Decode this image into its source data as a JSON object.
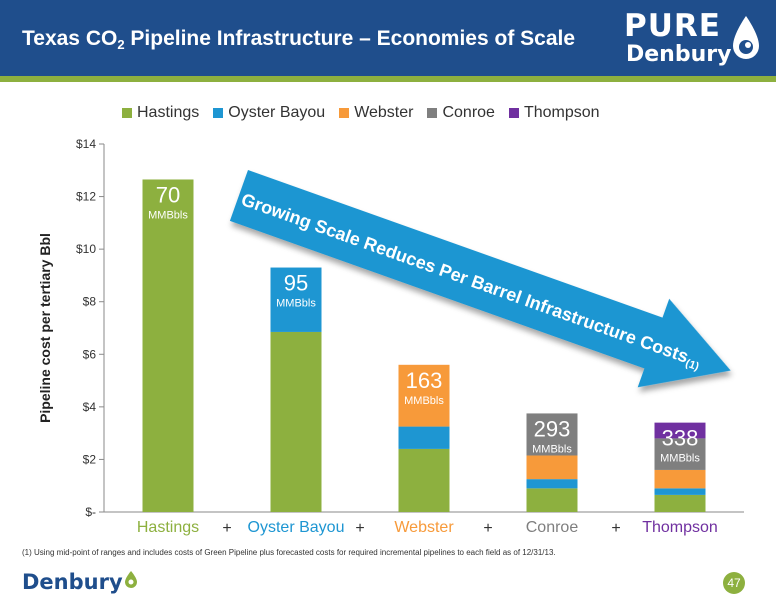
{
  "header": {
    "title_before_sub": "Texas CO",
    "title_sub": "2",
    "title_after_sub": " Pipeline Infrastructure – Economies of Scale"
  },
  "logo": {
    "top_word": "PURE",
    "bottom_word": "Denbury"
  },
  "footer": {
    "footnote": "(1) Using mid-point of ranges and includes costs of Green Pipeline plus forecasted costs for required incremental  pipelines to each field as of 12/31/13.",
    "brand": "Denbury",
    "page_number": "47"
  },
  "colors": {
    "header": "#1f4e8c",
    "green": "#8db03f",
    "Hastings": "#8db03f",
    "Oyster Bayou": "#1e96d2",
    "Webster": "#f79a3a",
    "Conroe": "#7f7f7f",
    "Thompson": "#7030a0",
    "arrow": "#1e96d2"
  },
  "chart_data": {
    "type": "bar",
    "stacked": true,
    "ylabel": "Pipeline cost per tertiary Bbl",
    "ylim": [
      0,
      14
    ],
    "yticks": [
      0,
      2,
      4,
      6,
      8,
      10,
      12,
      14
    ],
    "ytick_labels": [
      "$-",
      "$2",
      "$4",
      "$6",
      "$8",
      "$10",
      "$12",
      "$14"
    ],
    "grid": false,
    "legend": "top",
    "categories": [
      "Hastings",
      "Oyster Bayou",
      "Webster",
      "Conroe",
      "Thompson"
    ],
    "category_separator": "+",
    "series": [
      {
        "name": "Hastings",
        "values": [
          12.65,
          6.85,
          2.4,
          0.9,
          0.65
        ]
      },
      {
        "name": "Oyster Bayou",
        "values": [
          0,
          2.45,
          0.85,
          0.35,
          0.25
        ]
      },
      {
        "name": "Webster",
        "values": [
          0,
          0,
          2.35,
          0.9,
          0.7
        ]
      },
      {
        "name": "Conroe",
        "values": [
          0,
          0,
          0,
          1.6,
          1.2
        ]
      },
      {
        "name": "Thompson",
        "values": [
          0,
          0,
          0,
          0,
          0.6
        ]
      }
    ],
    "bar_labels": [
      {
        "value": "70",
        "unit": "MMBbls"
      },
      {
        "value": "95",
        "unit": "MMBbls"
      },
      {
        "value": "163",
        "unit": "MMBbls"
      },
      {
        "value": "293",
        "unit": "MMBbls"
      },
      {
        "value": "338",
        "unit": "MMBbls"
      }
    ],
    "annotation": {
      "text": "Growing Scale Reduces Per Barrel Infrastructure Costs",
      "superscript": "(1)"
    }
  }
}
